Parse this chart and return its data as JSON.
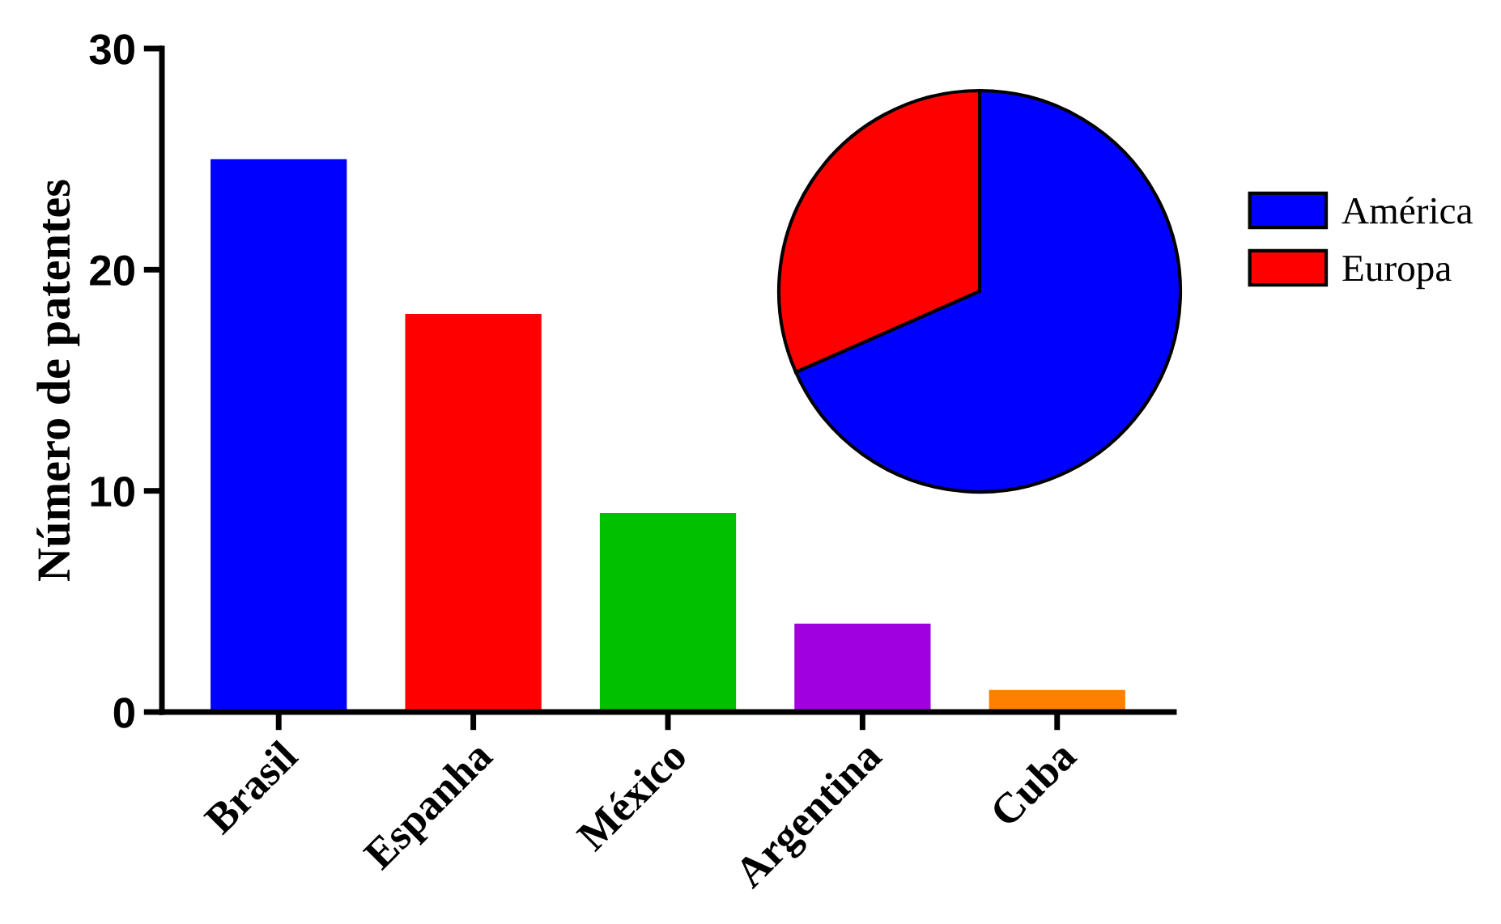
{
  "chart_data": [
    {
      "type": "bar",
      "ylabel": "Número de patentes",
      "categories": [
        "Brasil",
        "Espanha",
        "México",
        "Argentina",
        "Cuba"
      ],
      "values": [
        25,
        18,
        9,
        4,
        1
      ],
      "colors": [
        "#0000ff",
        "#ff0000",
        "#00c000",
        "#a000e0",
        "#ff8000"
      ],
      "ylim": [
        0,
        30
      ],
      "yticks": [
        0,
        10,
        20,
        30
      ],
      "grid": false
    },
    {
      "type": "pie",
      "categories": [
        "América",
        "Europa"
      ],
      "values": [
        68.4,
        31.6
      ],
      "colors": [
        "#0000ff",
        "#ff0000"
      ],
      "legend": "right"
    }
  ]
}
